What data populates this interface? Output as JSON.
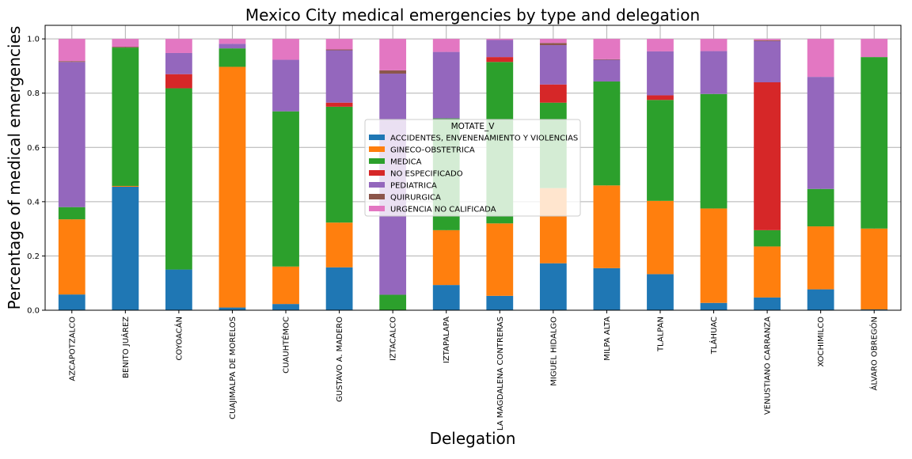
{
  "chart_data": {
    "type": "bar",
    "stacked": true,
    "title": "Mexico City medical emergencies by type and delegation",
    "xlabel": "Delegation",
    "ylabel": "Percentage of medical emergencies",
    "ylim": [
      0,
      1.05
    ],
    "yticks": [
      "0.0",
      "0.2",
      "0.4",
      "0.6",
      "0.8",
      "1.0"
    ],
    "grid": true,
    "legend_title": "MOTATE_V",
    "legend_position": "center",
    "categories": [
      "AZCAPOTZALCO",
      "BENITO JUÁREZ",
      "COYOACÁN",
      "CUAJIMALPA DE MORELOS",
      "CUAUHTÉMOC",
      "GUSTAVO A. MADERO",
      "IZTACALCO",
      "IZTAPALAPA",
      "LA MAGDALENA CONTRERAS",
      "MIGUEL HIDALGO",
      "MILPA ALTA",
      "TLALPAN",
      "TLÁHUAC",
      "VENUSTIANO CARRANZA",
      "XOCHIMILCO",
      "ÁLVARO OBREGÓN"
    ],
    "series": [
      {
        "name": "ACCIDENTES, ENVENENAMIENTO Y VIOLENCIAS",
        "color": "#1f77b4",
        "values": [
          0.058,
          0.455,
          0.15,
          0.01,
          0.023,
          0.158,
          0.0,
          0.093,
          0.053,
          0.173,
          0.155,
          0.133,
          0.027,
          0.047,
          0.077,
          0.003
        ]
      },
      {
        "name": "GINECO-OBSTETRICA",
        "color": "#ff7f0e",
        "values": [
          0.277,
          0.003,
          0.0,
          0.887,
          0.138,
          0.165,
          0.0,
          0.202,
          0.267,
          0.277,
          0.305,
          0.27,
          0.348,
          0.188,
          0.232,
          0.298
        ]
      },
      {
        "name": "MEDICA",
        "color": "#2ca02c",
        "values": [
          0.045,
          0.51,
          0.668,
          0.068,
          0.572,
          0.427,
          0.057,
          0.412,
          0.595,
          0.315,
          0.383,
          0.372,
          0.422,
          0.06,
          0.138,
          0.632
        ]
      },
      {
        "name": "NO ESPECIFICADO",
        "color": "#d62728",
        "values": [
          0.0,
          0.0,
          0.052,
          0.0,
          0.0,
          0.015,
          0.0,
          0.0,
          0.018,
          0.067,
          0.0,
          0.017,
          0.0,
          0.545,
          0.0,
          0.0
        ]
      },
      {
        "name": "PEDIATRICA",
        "color": "#9467bd",
        "values": [
          0.535,
          0.0,
          0.078,
          0.017,
          0.19,
          0.193,
          0.815,
          0.245,
          0.063,
          0.145,
          0.08,
          0.162,
          0.158,
          0.152,
          0.413,
          0.0
        ]
      },
      {
        "name": "QUIRURGICA",
        "color": "#8c564b",
        "values": [
          0.003,
          0.003,
          0.0,
          0.0,
          0.0,
          0.003,
          0.012,
          0.0,
          0.0,
          0.008,
          0.002,
          0.0,
          0.0,
          0.003,
          0.0,
          0.0
        ]
      },
      {
        "name": "URGENCIA NO CALIFICADA",
        "color": "#e377c2",
        "values": [
          0.082,
          0.029,
          0.052,
          0.018,
          0.077,
          0.039,
          0.116,
          0.048,
          0.004,
          0.015,
          0.075,
          0.046,
          0.045,
          0.005,
          0.14,
          0.067
        ]
      }
    ]
  }
}
